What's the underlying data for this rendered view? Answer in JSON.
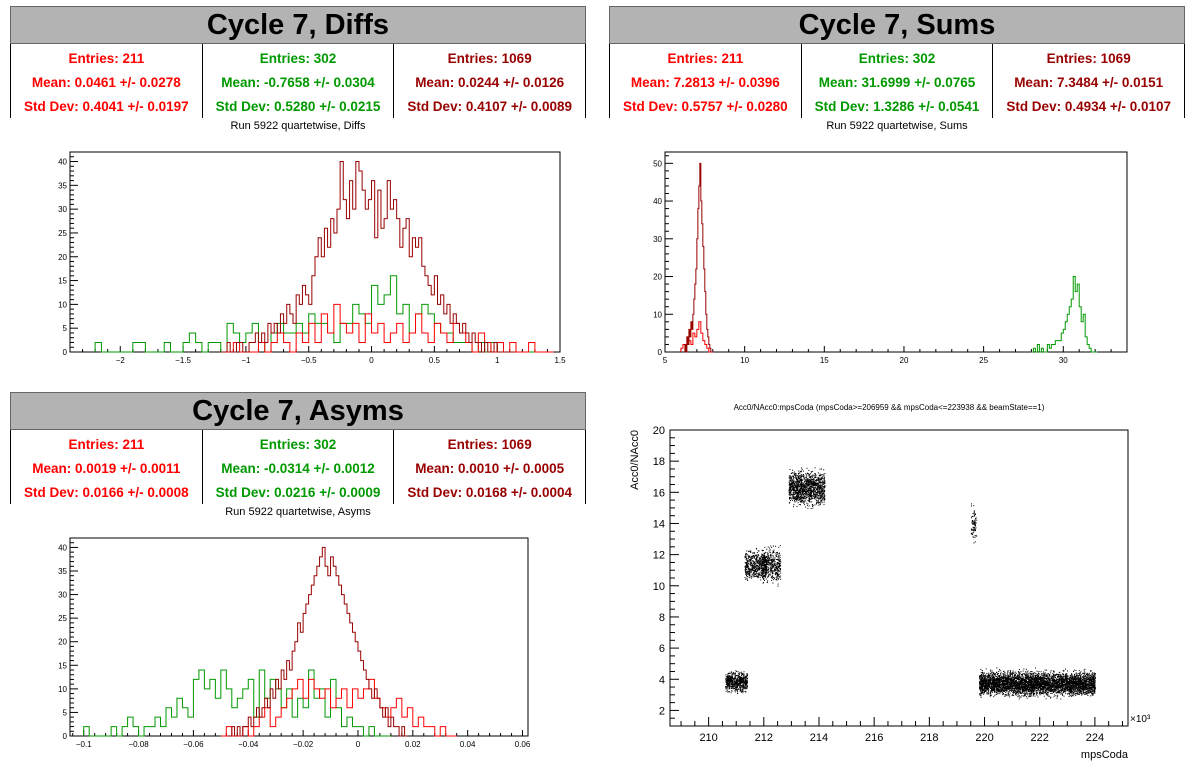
{
  "panels": [
    {
      "title": "Cycle 7, Diffs",
      "subtitle": "Run 5922 quartetwise, Diffs",
      "stats": [
        {
          "entries": "Entries: 211",
          "mean": "Mean: 0.0461 +/- 0.0278",
          "std": "Std Dev: 0.4041 +/- 0.0197",
          "color": "#ff0000"
        },
        {
          "entries": "Entries: 302",
          "mean": "Mean: -0.7658 +/- 0.0304",
          "std": "Std Dev: 0.5280 +/- 0.0215",
          "color": "#009900"
        },
        {
          "entries": "Entries: 1069",
          "mean": "Mean: 0.0244 +/- 0.0126",
          "std": "Std Dev: 0.4107 +/- 0.0089",
          "color": "#990000"
        }
      ]
    },
    {
      "title": "Cycle 7, Sums",
      "subtitle": "Run 5922 quartetwise, Sums",
      "stats": [
        {
          "entries": "Entries: 211",
          "mean": "Mean: 7.2813 +/- 0.0396",
          "std": "Std Dev: 0.5757 +/- 0.0280",
          "color": "#ff0000"
        },
        {
          "entries": "Entries: 302",
          "mean": "Mean: 31.6999 +/- 0.0765",
          "std": "Std Dev: 1.3286 +/- 0.0541",
          "color": "#009900"
        },
        {
          "entries": "Entries: 1069",
          "mean": "Mean: 7.3484 +/- 0.0151",
          "std": "Std Dev: 0.4934 +/- 0.0107",
          "color": "#990000"
        }
      ]
    },
    {
      "title": "Cycle 7, Asyms",
      "subtitle": "Run 5922 quartetwise, Asyms",
      "stats": [
        {
          "entries": "Entries: 211",
          "mean": "Mean: 0.0019 +/- 0.0011",
          "std": "Std Dev: 0.0166 +/- 0.0008",
          "color": "#ff0000"
        },
        {
          "entries": "Entries: 302",
          "mean": "Mean: -0.0314 +/- 0.0012",
          "std": "Std Dev: 0.0216 +/- 0.0009",
          "color": "#009900"
        },
        {
          "entries": "Entries: 1069",
          "mean": "Mean: 0.0010 +/- 0.0005",
          "std": "Std Dev: 0.0168 +/- 0.0004",
          "color": "#990000"
        }
      ]
    }
  ],
  "chart_data": [
    {
      "id": "diffs",
      "type": "histogram",
      "title": "Run 5922 quartetwise, Diffs",
      "xlim": [
        -2.4,
        1.5
      ],
      "ylim": [
        0,
        42
      ],
      "xticks": [
        -2,
        -1.5,
        -1,
        -0.5,
        0,
        0.5,
        1,
        1.5
      ],
      "xtick_labels": [
        "−2",
        "−1.5",
        "−1",
        "−0.5",
        "0",
        "0.5",
        "1",
        "1.5"
      ],
      "yticks": [
        0,
        5,
        10,
        15,
        20,
        25,
        30,
        35,
        40
      ],
      "series": [
        {
          "color": "#009900",
          "x0": -2.2,
          "binwidth": 0.05,
          "values": [
            2,
            0,
            0,
            0,
            0,
            0,
            2,
            2,
            0,
            0,
            0,
            2,
            0,
            0,
            2,
            4,
            2,
            0,
            2,
            2,
            0,
            6,
            4,
            2,
            4,
            6,
            2,
            0,
            4,
            6,
            4,
            4,
            6,
            4,
            8,
            6,
            6,
            4,
            2,
            6,
            6,
            10,
            8,
            6,
            14,
            10,
            12,
            16,
            8,
            10,
            4,
            8,
            10,
            8,
            6,
            4,
            4,
            2,
            2,
            2,
            0,
            2,
            0,
            2,
            0,
            0,
            0,
            0,
            0,
            0,
            0,
            0
          ]
        },
        {
          "color": "#ff0000",
          "x0": -1.2,
          "binwidth": 0.05,
          "values": [
            0,
            0,
            2,
            0,
            0,
            0,
            2,
            0,
            2,
            4,
            2,
            0,
            4,
            2,
            6,
            2,
            8,
            4,
            10,
            6,
            4,
            6,
            2,
            8,
            4,
            6,
            2,
            4,
            6,
            2,
            4,
            8,
            4,
            2,
            6,
            4,
            2,
            6,
            4,
            2,
            0,
            4,
            2,
            0,
            2,
            0,
            2,
            0,
            0,
            2,
            0,
            0,
            0
          ]
        },
        {
          "color": "#990000",
          "x0": -1.2,
          "binwidth": 0.025,
          "values": [
            0,
            0,
            2,
            0,
            0,
            2,
            2,
            0,
            0,
            2,
            2,
            4,
            2,
            4,
            2,
            6,
            4,
            6,
            4,
            8,
            6,
            10,
            8,
            6,
            12,
            10,
            14,
            12,
            10,
            16,
            20,
            24,
            20,
            26,
            22,
            28,
            25,
            30,
            40,
            32,
            28,
            36,
            30,
            40,
            38,
            34,
            30,
            32,
            36,
            24,
            34,
            26,
            28,
            36,
            30,
            32,
            28,
            22,
            26,
            28,
            20,
            24,
            22,
            24,
            18,
            16,
            14,
            12,
            16,
            10,
            12,
            8,
            10,
            6,
            8,
            6,
            4,
            6,
            4,
            2,
            4,
            2,
            2,
            0,
            2,
            0,
            0,
            2,
            0,
            0,
            0,
            0,
            0,
            0
          ]
        }
      ]
    },
    {
      "id": "sums",
      "type": "histogram",
      "title": "Run 5922 quartetwise, Sums",
      "xlim": [
        5,
        34
      ],
      "ylim": [
        0,
        53
      ],
      "xticks": [
        5,
        10,
        15,
        20,
        25,
        30
      ],
      "xtick_labels": [
        "5",
        "10",
        "15",
        "20",
        "25",
        "30"
      ],
      "yticks": [
        0,
        10,
        20,
        30,
        40,
        50
      ],
      "series": [
        {
          "color": "#009900",
          "x0": 28.0,
          "binwidth": 0.125,
          "values": [
            0,
            1,
            0,
            2,
            0,
            1,
            0,
            0,
            2,
            1,
            2,
            2,
            3,
            3,
            3,
            5,
            6,
            8,
            10,
            12,
            14,
            20,
            16,
            18,
            12,
            8,
            10,
            4,
            2,
            1,
            0,
            0,
            0
          ]
        },
        {
          "color": "#ff0000",
          "x0": 6.0,
          "binwidth": 0.125,
          "values": [
            1,
            2,
            2,
            4,
            3,
            2,
            5,
            4,
            6,
            8,
            5,
            3,
            2,
            1,
            0,
            0
          ]
        },
        {
          "color": "#990000",
          "x0": 6.25,
          "binwidth": 0.0625,
          "values": [
            2,
            0,
            4,
            2,
            6,
            4,
            8,
            6,
            10,
            14,
            18,
            22,
            30,
            38,
            44,
            50,
            40,
            34,
            28,
            22,
            16,
            10,
            6,
            4,
            2,
            1,
            0
          ]
        }
      ]
    },
    {
      "id": "asyms",
      "type": "histogram",
      "title": "Run 5922 quartetwise, Asyms",
      "xlim": [
        -0.105,
        0.062
      ],
      "ylim": [
        0,
        42
      ],
      "xticks": [
        -0.1,
        -0.08,
        -0.06,
        -0.04,
        -0.02,
        0,
        0.02,
        0.04,
        0.06
      ],
      "xtick_labels": [
        "−0.1",
        "−0.08",
        "−0.06",
        "−0.04",
        "−0.02",
        "0",
        "0.02",
        "0.04",
        "0.06"
      ],
      "yticks": [
        0,
        5,
        10,
        15,
        20,
        25,
        30,
        35,
        40
      ],
      "series": [
        {
          "color": "#009900",
          "x0": -0.1,
          "binwidth": 0.002,
          "values": [
            2,
            0,
            0,
            0,
            0,
            2,
            0,
            2,
            4,
            2,
            0,
            2,
            2,
            4,
            2,
            6,
            4,
            8,
            6,
            4,
            12,
            14,
            10,
            12,
            8,
            14,
            10,
            6,
            8,
            10,
            12,
            4,
            14,
            8,
            12,
            10,
            6,
            10,
            4,
            8,
            6,
            14,
            8,
            10,
            4,
            12,
            6,
            2,
            4,
            2,
            2,
            0,
            2,
            0,
            0,
            0
          ]
        },
        {
          "color": "#ff0000",
          "x0": -0.05,
          "binwidth": 0.002,
          "values": [
            0,
            2,
            0,
            0,
            2,
            0,
            2,
            4,
            6,
            2,
            4,
            6,
            8,
            10,
            12,
            8,
            12,
            10,
            8,
            10,
            6,
            8,
            10,
            6,
            10,
            8,
            10,
            12,
            8,
            6,
            4,
            6,
            8,
            4,
            6,
            2,
            4,
            2,
            2,
            0,
            2,
            0,
            0
          ]
        },
        {
          "color": "#990000",
          "x0": -0.048,
          "binwidth": 0.001,
          "values": [
            0,
            0,
            2,
            0,
            2,
            0,
            2,
            2,
            4,
            2,
            4,
            6,
            4,
            6,
            8,
            6,
            10,
            8,
            12,
            10,
            14,
            12,
            16,
            14,
            18,
            20,
            24,
            22,
            26,
            28,
            30,
            32,
            34,
            36,
            38,
            40,
            36,
            34,
            38,
            36,
            34,
            32,
            30,
            28,
            26,
            24,
            22,
            20,
            18,
            16,
            14,
            12,
            10,
            8,
            10,
            8,
            6,
            4,
            6,
            2,
            4,
            2,
            2,
            0,
            2,
            0
          ]
        }
      ]
    },
    {
      "id": "scatter",
      "type": "scatter",
      "title": "Acc0/NAcc0:mpsCoda (mpsCoda>=206959 && mpsCoda<=223938 && beamState==1)",
      "xlabel": "mpsCoda",
      "ylabel": "Acc0/NAcc0",
      "x_exponent": "×10³",
      "xlim": [
        208.6,
        225.2
      ],
      "ylim": [
        1,
        20
      ],
      "xticks": [
        210,
        212,
        214,
        216,
        218,
        220,
        222,
        224
      ],
      "yticks": [
        2,
        4,
        6,
        8,
        10,
        12,
        14,
        16,
        18,
        20
      ],
      "clusters": [
        {
          "x": [
            210.6,
            211.4
          ],
          "y": [
            3.0,
            4.7
          ],
          "n": 600
        },
        {
          "x": [
            211.3,
            212.1
          ],
          "y": [
            10.0,
            12.6
          ],
          "n": 550
        },
        {
          "x": [
            211.9,
            212.6
          ],
          "y": [
            9.8,
            12.9
          ],
          "n": 450
        },
        {
          "x": [
            212.9,
            214.2
          ],
          "y": [
            14.8,
            17.8
          ],
          "n": 1300
        },
        {
          "x": [
            219.5,
            219.7
          ],
          "y": [
            12.5,
            15.5
          ],
          "n": 80
        },
        {
          "x": [
            219.8,
            224.0
          ],
          "y": [
            2.7,
            4.8
          ],
          "n": 4500
        }
      ]
    }
  ]
}
